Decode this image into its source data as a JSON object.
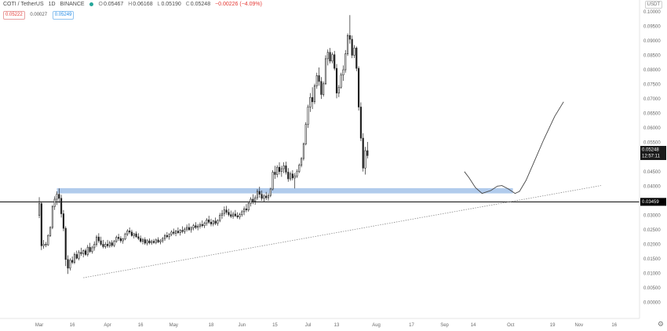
{
  "header": {
    "symbol": "COTI / TetherUS",
    "interval": "1D",
    "exchange": "BINANCE",
    "open_label": "O",
    "open": "0.05467",
    "high_label": "H",
    "high": "0.06168",
    "low_label": "L",
    "low": "0.05190",
    "close_label": "C",
    "close": "0.05248",
    "change": "−0.00226 (−4.09%)",
    "bid_price": "0.05222",
    "spread": "0.00027",
    "ask_price": "0.05249"
  },
  "currency_button": "USDT",
  "price_tags": {
    "last_price": "0.05248",
    "countdown": "12:57:11",
    "support_price": "0.03459"
  },
  "colors": {
    "up": "#3d3d3d",
    "down": "#1a1a1a",
    "zone": "#a9c5ea",
    "support_tag": "#000000",
    "last_price_tag": "#1a1a1a"
  },
  "icons": {
    "settings": "gear-icon",
    "live_status": "green-dot-icon"
  },
  "chart_data": {
    "type": "candlestick",
    "title": "COTI / TetherUS · 1D · BINANCE",
    "y_ticks": [
      "0.10000",
      "0.09500",
      "0.09000",
      "0.08500",
      "0.08000",
      "0.07500",
      "0.07000",
      "0.06500",
      "0.06000",
      "0.05500",
      "0.05000",
      "0.04500",
      "0.04000",
      "0.03500",
      "0.03000",
      "0.02500",
      "0.02000",
      "0.01500",
      "0.01000",
      "0.00500",
      "0.00000",
      "-0.00500"
    ],
    "ylim": [
      -0.0055,
      0.104
    ],
    "x_ticks": [
      "Mar",
      "16",
      "Apr",
      "16",
      "May",
      "18",
      "Jun",
      "15",
      "Jul",
      "13",
      "Aug",
      "17",
      "Sep",
      "14",
      "Oct",
      "19",
      "Nov",
      "16"
    ],
    "x_tick_positions": [
      0,
      15,
      31,
      46,
      61,
      78,
      92,
      107,
      122,
      135,
      153,
      169,
      184,
      197,
      214,
      233,
      245,
      261
    ],
    "xlim": [
      -5,
      270
    ],
    "support_zone": {
      "low": 0.0375,
      "high": 0.0393
    },
    "support_line_price": 0.03459,
    "trendline": {
      "start": [
        20,
        0.0085
      ],
      "end": [
        255,
        0.0402
      ]
    },
    "projection_path": [
      [
        193,
        0.045
      ],
      [
        195,
        0.043
      ],
      [
        198,
        0.0395
      ],
      [
        201,
        0.0375
      ],
      [
        205,
        0.0385
      ],
      [
        208,
        0.04
      ],
      [
        210,
        0.0402
      ],
      [
        213,
        0.039
      ],
      [
        216,
        0.0375
      ],
      [
        218,
        0.0382
      ],
      [
        221,
        0.042
      ],
      [
        225,
        0.049
      ],
      [
        229,
        0.056
      ],
      [
        234,
        0.064
      ],
      [
        238,
        0.069
      ]
    ],
    "candles": [
      [
        0,
        0.03,
        0.0362,
        0.029,
        0.034
      ],
      [
        1,
        0.034,
        0.0345,
        0.018,
        0.0195
      ],
      [
        2,
        0.0195,
        0.0215,
        0.0185,
        0.02
      ],
      [
        3,
        0.02,
        0.0208,
        0.019,
        0.0198
      ],
      [
        4,
        0.0198,
        0.0235,
        0.0195,
        0.023
      ],
      [
        5,
        0.023,
        0.0262,
        0.0225,
        0.0258
      ],
      [
        6,
        0.0258,
        0.0335,
        0.0252,
        0.033
      ],
      [
        7,
        0.033,
        0.0365,
        0.0318,
        0.0355
      ],
      [
        8,
        0.0355,
        0.0382,
        0.0335,
        0.0372
      ],
      [
        9,
        0.0372,
        0.0392,
        0.0342,
        0.0358
      ],
      [
        10,
        0.0358,
        0.037,
        0.0292,
        0.0305
      ],
      [
        11,
        0.0305,
        0.0318,
        0.0245,
        0.0255
      ],
      [
        12,
        0.0255,
        0.0262,
        0.0125,
        0.0148
      ],
      [
        13,
        0.0148,
        0.0162,
        0.0098,
        0.0118
      ],
      [
        14,
        0.0118,
        0.0152,
        0.011,
        0.0145
      ],
      [
        15,
        0.0145,
        0.0158,
        0.0132,
        0.0138
      ],
      [
        16,
        0.0138,
        0.0172,
        0.0132,
        0.0165
      ],
      [
        17,
        0.0165,
        0.0178,
        0.0148,
        0.0152
      ],
      [
        18,
        0.0152,
        0.018,
        0.0145,
        0.0172
      ],
      [
        19,
        0.0172,
        0.0188,
        0.016,
        0.0168
      ],
      [
        20,
        0.0168,
        0.0182,
        0.0155,
        0.0178
      ],
      [
        21,
        0.0178,
        0.0185,
        0.016,
        0.0165
      ],
      [
        22,
        0.0165,
        0.0198,
        0.0158,
        0.019
      ],
      [
        23,
        0.019,
        0.0205,
        0.017,
        0.0175
      ],
      [
        24,
        0.0175,
        0.0195,
        0.0168,
        0.0188
      ],
      [
        25,
        0.0188,
        0.021,
        0.0178,
        0.02
      ],
      [
        26,
        0.02,
        0.0232,
        0.0192,
        0.0225
      ],
      [
        27,
        0.0225,
        0.0238,
        0.0205,
        0.0212
      ],
      [
        28,
        0.0212,
        0.0226,
        0.0195,
        0.02
      ],
      [
        29,
        0.02,
        0.0215,
        0.0186,
        0.0192
      ],
      [
        30,
        0.0192,
        0.0208,
        0.0185,
        0.02
      ],
      [
        31,
        0.02,
        0.0215,
        0.0188,
        0.0195
      ],
      [
        32,
        0.0195,
        0.0212,
        0.0188,
        0.0205
      ],
      [
        33,
        0.0205,
        0.0214,
        0.019,
        0.0196
      ],
      [
        34,
        0.0196,
        0.0215,
        0.019,
        0.021
      ],
      [
        35,
        0.021,
        0.023,
        0.0205,
        0.0224
      ],
      [
        36,
        0.0224,
        0.0236,
        0.0212,
        0.022
      ],
      [
        37,
        0.022,
        0.0228,
        0.0205,
        0.0212
      ],
      [
        38,
        0.0212,
        0.0222,
        0.0202,
        0.0218
      ],
      [
        39,
        0.0218,
        0.024,
        0.0214,
        0.0235
      ],
      [
        40,
        0.0235,
        0.0252,
        0.0228,
        0.0246
      ],
      [
        41,
        0.0246,
        0.0258,
        0.0235,
        0.0242
      ],
      [
        42,
        0.0242,
        0.025,
        0.0226,
        0.023
      ],
      [
        43,
        0.023,
        0.024,
        0.022,
        0.0236
      ],
      [
        44,
        0.0236,
        0.0244,
        0.0222,
        0.0226
      ],
      [
        45,
        0.0226,
        0.0238,
        0.0214,
        0.022
      ],
      [
        46,
        0.022,
        0.023,
        0.0205,
        0.021
      ],
      [
        47,
        0.021,
        0.0222,
        0.02,
        0.0216
      ],
      [
        48,
        0.0216,
        0.0224,
        0.0198,
        0.0204
      ],
      [
        49,
        0.0204,
        0.0218,
        0.0196,
        0.0212
      ],
      [
        50,
        0.0212,
        0.022,
        0.02,
        0.0205
      ],
      [
        51,
        0.0205,
        0.0216,
        0.0198,
        0.021
      ],
      [
        52,
        0.021,
        0.0218,
        0.0202,
        0.0206
      ],
      [
        53,
        0.0206,
        0.022,
        0.02,
        0.0215
      ],
      [
        54,
        0.0215,
        0.0224,
        0.0204,
        0.0208
      ],
      [
        55,
        0.0208,
        0.0218,
        0.02,
        0.0212
      ],
      [
        56,
        0.0212,
        0.0225,
        0.0205,
        0.022
      ],
      [
        57,
        0.022,
        0.0236,
        0.0212,
        0.023
      ],
      [
        58,
        0.023,
        0.0242,
        0.022,
        0.0226
      ],
      [
        59,
        0.0226,
        0.0238,
        0.0216,
        0.0234
      ],
      [
        60,
        0.0234,
        0.0248,
        0.0228,
        0.0242
      ],
      [
        61,
        0.0242,
        0.0254,
        0.0232,
        0.0238
      ],
      [
        62,
        0.0238,
        0.025,
        0.0228,
        0.0245
      ],
      [
        63,
        0.0245,
        0.0258,
        0.0235,
        0.024
      ],
      [
        64,
        0.024,
        0.0252,
        0.023,
        0.0248
      ],
      [
        65,
        0.0248,
        0.0262,
        0.0238,
        0.0244
      ],
      [
        66,
        0.0244,
        0.0258,
        0.0236,
        0.0252
      ],
      [
        67,
        0.0252,
        0.0268,
        0.0244,
        0.0258
      ],
      [
        68,
        0.0258,
        0.0272,
        0.0246,
        0.025
      ],
      [
        69,
        0.025,
        0.0262,
        0.024,
        0.0256
      ],
      [
        70,
        0.0256,
        0.027,
        0.0248,
        0.0264
      ],
      [
        71,
        0.0264,
        0.0276,
        0.0252,
        0.0258
      ],
      [
        72,
        0.0258,
        0.027,
        0.0248,
        0.0262
      ],
      [
        73,
        0.0262,
        0.0275,
        0.0254,
        0.0268
      ],
      [
        74,
        0.0268,
        0.0282,
        0.0258,
        0.0264
      ],
      [
        75,
        0.0264,
        0.0278,
        0.0256,
        0.0272
      ],
      [
        76,
        0.0272,
        0.029,
        0.0264,
        0.0284
      ],
      [
        77,
        0.0284,
        0.0298,
        0.027,
        0.0276
      ],
      [
        78,
        0.0276,
        0.0288,
        0.0262,
        0.027
      ],
      [
        79,
        0.027,
        0.0284,
        0.0262,
        0.028
      ],
      [
        80,
        0.028,
        0.0292,
        0.0266,
        0.0272
      ],
      [
        81,
        0.0272,
        0.0286,
        0.0264,
        0.0282
      ],
      [
        82,
        0.0282,
        0.0308,
        0.0276,
        0.03
      ],
      [
        83,
        0.03,
        0.0318,
        0.0288,
        0.0306
      ],
      [
        84,
        0.0306,
        0.033,
        0.0296,
        0.0318
      ],
      [
        85,
        0.0318,
        0.0332,
        0.0302,
        0.031
      ],
      [
        86,
        0.031,
        0.0322,
        0.0296,
        0.0302
      ],
      [
        87,
        0.0302,
        0.0316,
        0.029,
        0.0296
      ],
      [
        88,
        0.0296,
        0.0312,
        0.0288,
        0.0304
      ],
      [
        89,
        0.0304,
        0.0318,
        0.0294,
        0.0298
      ],
      [
        90,
        0.0298,
        0.031,
        0.0288,
        0.0294
      ],
      [
        91,
        0.0294,
        0.0308,
        0.0286,
        0.0302
      ],
      [
        92,
        0.0302,
        0.0318,
        0.0295,
        0.0312
      ],
      [
        93,
        0.0312,
        0.033,
        0.03,
        0.0322
      ],
      [
        94,
        0.0322,
        0.0338,
        0.031,
        0.0318
      ],
      [
        95,
        0.0318,
        0.0345,
        0.0312,
        0.034
      ],
      [
        96,
        0.034,
        0.0362,
        0.033,
        0.0355
      ],
      [
        97,
        0.0355,
        0.0372,
        0.0338,
        0.0348
      ],
      [
        98,
        0.0348,
        0.0368,
        0.0336,
        0.036
      ],
      [
        99,
        0.036,
        0.039,
        0.0352,
        0.0382
      ],
      [
        100,
        0.0382,
        0.0398,
        0.036,
        0.0372
      ],
      [
        101,
        0.0372,
        0.0385,
        0.035,
        0.0358
      ],
      [
        102,
        0.0358,
        0.0372,
        0.0345,
        0.0366
      ],
      [
        103,
        0.0366,
        0.038,
        0.0352,
        0.036
      ],
      [
        104,
        0.036,
        0.0375,
        0.035,
        0.0368
      ],
      [
        105,
        0.0368,
        0.0395,
        0.0362,
        0.039
      ],
      [
        106,
        0.039,
        0.0455,
        0.0385,
        0.0448
      ],
      [
        107,
        0.0448,
        0.047,
        0.0425,
        0.044
      ],
      [
        108,
        0.044,
        0.0472,
        0.043,
        0.0465
      ],
      [
        109,
        0.0465,
        0.0482,
        0.044,
        0.045
      ],
      [
        110,
        0.045,
        0.047,
        0.0432,
        0.046
      ],
      [
        111,
        0.046,
        0.0482,
        0.0445,
        0.047
      ],
      [
        112,
        0.047,
        0.0484,
        0.044,
        0.0448
      ],
      [
        113,
        0.0448,
        0.0462,
        0.0415,
        0.0425
      ],
      [
        114,
        0.0425,
        0.045,
        0.0418,
        0.0442
      ],
      [
        115,
        0.0442,
        0.0455,
        0.042,
        0.0428
      ],
      [
        116,
        0.0428,
        0.0445,
        0.0392,
        0.0435
      ],
      [
        117,
        0.0435,
        0.0458,
        0.0428,
        0.045
      ],
      [
        118,
        0.045,
        0.0478,
        0.0445,
        0.0472
      ],
      [
        119,
        0.0472,
        0.05,
        0.0465,
        0.0495
      ],
      [
        120,
        0.0495,
        0.055,
        0.0488,
        0.0545
      ],
      [
        121,
        0.0545,
        0.062,
        0.054,
        0.0612
      ],
      [
        122,
        0.0612,
        0.068,
        0.06,
        0.0672
      ],
      [
        123,
        0.0672,
        0.072,
        0.0655,
        0.0705
      ],
      [
        124,
        0.0705,
        0.074,
        0.0665,
        0.069
      ],
      [
        125,
        0.069,
        0.0752,
        0.0682,
        0.0745
      ],
      [
        126,
        0.0745,
        0.079,
        0.0735,
        0.078
      ],
      [
        127,
        0.078,
        0.0808,
        0.0745,
        0.076
      ],
      [
        128,
        0.076,
        0.0775,
        0.07,
        0.0715
      ],
      [
        129,
        0.0715,
        0.076,
        0.0708,
        0.0752
      ],
      [
        130,
        0.0752,
        0.085,
        0.0748,
        0.0838
      ],
      [
        131,
        0.0838,
        0.087,
        0.0815,
        0.086
      ],
      [
        132,
        0.086,
        0.0875,
        0.0822,
        0.083
      ],
      [
        133,
        0.083,
        0.086,
        0.0822,
        0.0852
      ],
      [
        134,
        0.0852,
        0.0865,
        0.0798,
        0.0805
      ],
      [
        135,
        0.0805,
        0.082,
        0.0702,
        0.072
      ],
      [
        136,
        0.072,
        0.0748,
        0.0706,
        0.074
      ],
      [
        137,
        0.074,
        0.079,
        0.0735,
        0.0782
      ],
      [
        138,
        0.0782,
        0.0815,
        0.0762,
        0.08
      ],
      [
        139,
        0.08,
        0.0868,
        0.079,
        0.0855
      ],
      [
        140,
        0.0855,
        0.0925,
        0.0848,
        0.0918
      ],
      [
        141,
        0.0918,
        0.0988,
        0.089,
        0.0905
      ],
      [
        142,
        0.0905,
        0.0918,
        0.084,
        0.085
      ],
      [
        143,
        0.085,
        0.0885,
        0.084,
        0.0875
      ],
      [
        144,
        0.0875,
        0.088,
        0.0795,
        0.0805
      ],
      [
        145,
        0.0805,
        0.0812,
        0.066,
        0.0672
      ],
      [
        146,
        0.0672,
        0.0688,
        0.0555,
        0.0565
      ],
      [
        147,
        0.0565,
        0.0582,
        0.045,
        0.0462
      ],
      [
        148,
        0.0462,
        0.0535,
        0.044,
        0.0522
      ],
      [
        149,
        0.0522,
        0.0552,
        0.0495,
        0.0505
      ]
    ]
  }
}
